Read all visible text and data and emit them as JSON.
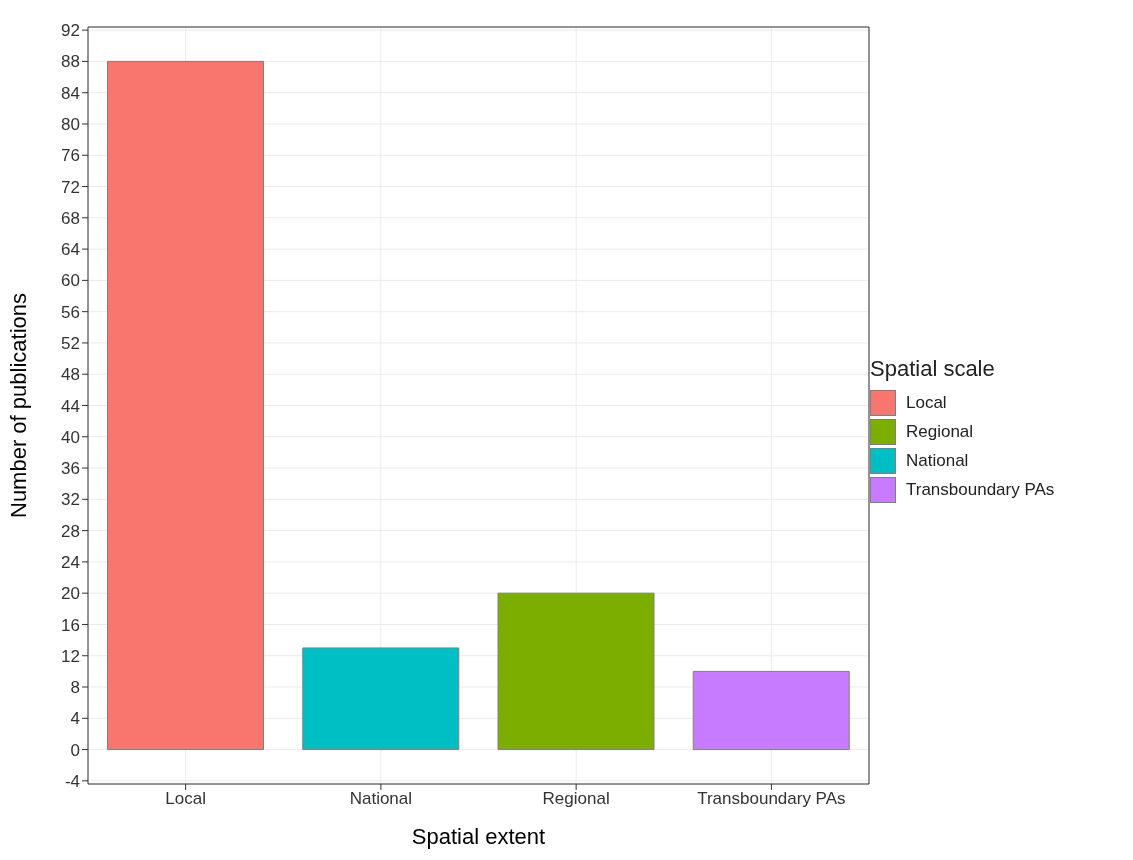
{
  "chart_data": {
    "type": "bar",
    "xlabel": "Spatial extent",
    "ylabel": "Number of publications",
    "legend_title": "Spatial scale",
    "categories": [
      "Local",
      "National",
      "Regional",
      "Transboundary PAs"
    ],
    "stacked": true,
    "series": [
      {
        "name": "Local",
        "color": "#f8766d",
        "values": [
          88,
          null,
          null,
          null
        ]
      },
      {
        "name": "Regional",
        "color": "#7cae00",
        "values": [
          null,
          null,
          20,
          null
        ]
      },
      {
        "name": "National",
        "color": "#00bfc4",
        "values": [
          null,
          13,
          null,
          null
        ]
      },
      {
        "name": "Transboundary PAs",
        "color": "#c77cff",
        "values": [
          null,
          null,
          null,
          10
        ]
      }
    ],
    "ylim": [
      -4.4,
      92.4
    ],
    "yticks": [
      -4,
      0,
      4,
      8,
      12,
      16,
      20,
      24,
      28,
      32,
      36,
      40,
      44,
      48,
      52,
      56,
      60,
      64,
      68,
      72,
      76,
      80,
      84,
      88,
      92
    ],
    "grid": true,
    "legend": "right"
  }
}
